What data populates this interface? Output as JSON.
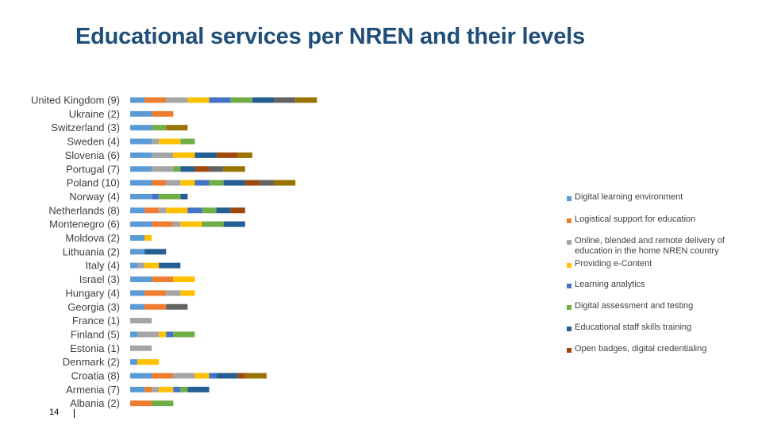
{
  "title": "Educational services per NREN and their levels",
  "page_number": "14",
  "colors": {
    "title": "#1F4E79",
    "series": [
      "#5B9BD5",
      "#ED7D31",
      "#A5A5A5",
      "#FFC000",
      "#4472C4",
      "#70AD47",
      "#255E91",
      "#9E480E",
      "#636363",
      "#997300"
    ]
  },
  "chart_data": {
    "type": "bar",
    "orientation": "horizontal",
    "stacked": true,
    "grid": false,
    "legend_position": "right",
    "categories": [
      "United Kingdom (9)",
      "Ukraine (2)",
      "Switzerland (3)",
      "Sweden (4)",
      "Slovenia (6)",
      "Portugal (7)",
      "Poland (10)",
      "Norway (4)",
      "Netherlands (8)",
      "Montenegro (6)",
      "Moldova (2)",
      "Lithuania (2)",
      "Italy (4)",
      "Israel (3)",
      "Hungary (4)",
      "Georgia (3)",
      "France (1)",
      "Finland (5)",
      "Estonia (1)",
      "Denmark (2)",
      "Croatia (8)",
      "Armenia (7)",
      "Albania (2)"
    ],
    "series": [
      {
        "name": "Digital learning environment",
        "values": [
          2,
          3,
          3,
          3,
          3,
          3,
          3,
          3,
          2,
          3,
          2,
          2,
          1,
          3,
          2,
          2,
          0,
          1,
          0,
          1,
          3,
          2,
          0
        ]
      },
      {
        "name": "Logistical support for education",
        "values": [
          3,
          3,
          0,
          0,
          0,
          0,
          2,
          0,
          2,
          3,
          0,
          0,
          0,
          3,
          3,
          3,
          0,
          0,
          0,
          0,
          3,
          1,
          3
        ]
      },
      {
        "name": "Online, blended and remote delivery of education in the home NREN country",
        "values": [
          3,
          0,
          0,
          1,
          3,
          3,
          2,
          0,
          1,
          1,
          0,
          0,
          1,
          0,
          2,
          0,
          3,
          3,
          3,
          0,
          3,
          1,
          0
        ]
      },
      {
        "name": "Providing e-Content",
        "values": [
          3,
          0,
          0,
          3,
          3,
          0,
          2,
          0,
          3,
          3,
          1,
          0,
          2,
          3,
          2,
          0,
          0,
          1,
          0,
          3,
          2,
          2,
          0
        ]
      },
      {
        "name": "Learning analytics",
        "values": [
          3,
          0,
          0,
          0,
          0,
          0,
          2,
          1,
          2,
          0,
          0,
          0,
          0,
          0,
          0,
          0,
          0,
          1,
          0,
          0,
          1,
          1,
          0
        ]
      },
      {
        "name": "Digital assessment and testing",
        "values": [
          3,
          0,
          2,
          2,
          0,
          1,
          2,
          3,
          2,
          3,
          0,
          0,
          0,
          0,
          0,
          0,
          0,
          3,
          0,
          0,
          0,
          1,
          3
        ]
      },
      {
        "name": "Educational staff skills training",
        "values": [
          3,
          0,
          0,
          0,
          3,
          2,
          3,
          1,
          2,
          3,
          0,
          3,
          3,
          0,
          0,
          0,
          0,
          0,
          0,
          0,
          3,
          3,
          0
        ]
      },
      {
        "name": "Open badges, digital credentialing",
        "values": [
          0,
          0,
          0,
          0,
          3,
          2,
          2,
          0,
          2,
          0,
          0,
          0,
          0,
          0,
          0,
          0,
          0,
          0,
          0,
          0,
          1,
          0,
          0
        ]
      },
      {
        "name": "",
        "values": [
          3,
          0,
          0,
          0,
          0,
          2,
          2,
          0,
          0,
          0,
          0,
          0,
          0,
          0,
          0,
          3,
          0,
          0,
          0,
          0,
          0,
          0,
          0
        ]
      },
      {
        "name": "",
        "values": [
          3,
          0,
          3,
          0,
          2,
          3,
          3,
          0,
          0,
          0,
          0,
          0,
          0,
          0,
          0,
          0,
          0,
          0,
          0,
          0,
          3,
          0,
          0
        ]
      }
    ]
  }
}
